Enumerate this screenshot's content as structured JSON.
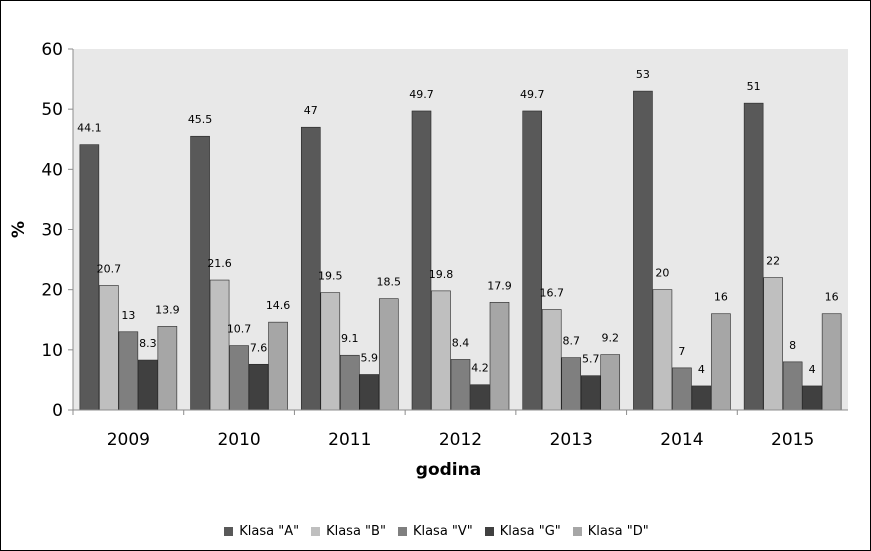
{
  "chart_data": {
    "type": "bar",
    "title": "",
    "xlabel": "godina",
    "ylabel": "%",
    "ylim": [
      0,
      60
    ],
    "yticks": [
      0,
      10,
      20,
      30,
      40,
      50,
      60
    ],
    "grid": false,
    "legend_position": "bottom",
    "categories": [
      "2009",
      "2010",
      "2011",
      "2012",
      "2013",
      "2014",
      "2015"
    ],
    "series": [
      {
        "name": "Klasa \"A\"",
        "color": "#595959",
        "values": [
          44.1,
          45.5,
          47,
          49.7,
          49.7,
          53,
          51
        ]
      },
      {
        "name": "Klasa \"B\"",
        "color": "#bfbfbf",
        "values": [
          20.7,
          21.6,
          19.5,
          19.8,
          16.7,
          20,
          22
        ]
      },
      {
        "name": "Klasa \"V\"",
        "color": "#7f7f7f",
        "values": [
          13,
          10.7,
          9.1,
          8.4,
          8.7,
          7,
          8
        ]
      },
      {
        "name": "Klasa \"G\"",
        "color": "#404040",
        "values": [
          8.3,
          7.6,
          5.9,
          4.2,
          5.7,
          4,
          4
        ]
      },
      {
        "name": "Klasa \"D\"",
        "color": "#a6a6a6",
        "values": [
          13.9,
          14.6,
          18.5,
          17.9,
          9.2,
          16,
          16
        ]
      }
    ],
    "plot_background": "#e8e8e8"
  }
}
